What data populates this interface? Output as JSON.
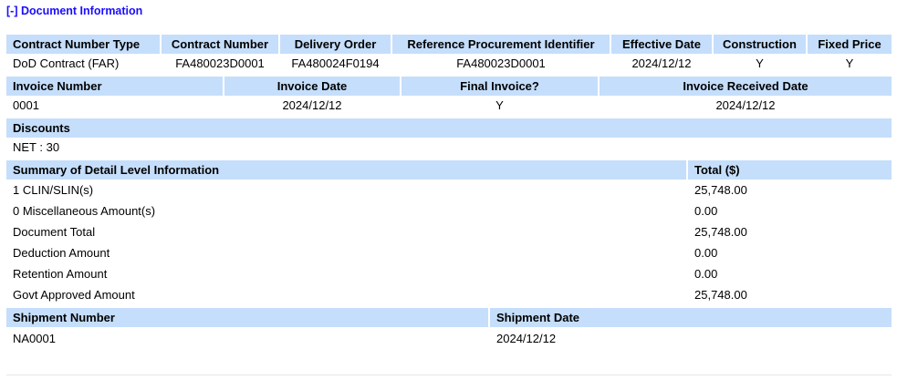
{
  "toggle_label": "[-] Document Information",
  "contract": {
    "headers": [
      "Contract Number Type",
      "Contract Number",
      "Delivery Order",
      "Reference Procurement Identifier",
      "Effective Date",
      "Construction",
      "Fixed Price"
    ],
    "values": [
      "DoD Contract (FAR)",
      "FA480023D0001",
      "FA480024F0194",
      "FA480023D0001",
      "2024/12/12",
      "Y",
      "Y"
    ]
  },
  "invoice": {
    "headers": [
      "Invoice Number",
      "Invoice Date",
      "Final Invoice?",
      "Invoice Received Date"
    ],
    "values": [
      "0001",
      "2024/12/12",
      "Y",
      "2024/12/12"
    ]
  },
  "discounts": {
    "header": "Discounts",
    "value": "NET : 30"
  },
  "summary": {
    "header": "Summary of Detail Level Information",
    "total_header": "Total ($)",
    "rows": [
      {
        "label": "1 CLIN/SLIN(s)",
        "total": "25,748.00"
      },
      {
        "label": "0 Miscellaneous Amount(s)",
        "total": "0.00"
      },
      {
        "label": "Document Total",
        "total": "25,748.00"
      },
      {
        "label": "Deduction Amount",
        "total": "0.00"
      },
      {
        "label": "Retention Amount",
        "total": "0.00"
      },
      {
        "label": "Govt Approved Amount",
        "total": "25,748.00"
      }
    ]
  },
  "shipment": {
    "headers": [
      "Shipment Number",
      "Shipment Date"
    ],
    "values": [
      "NA0001",
      "2024/12/12"
    ]
  }
}
